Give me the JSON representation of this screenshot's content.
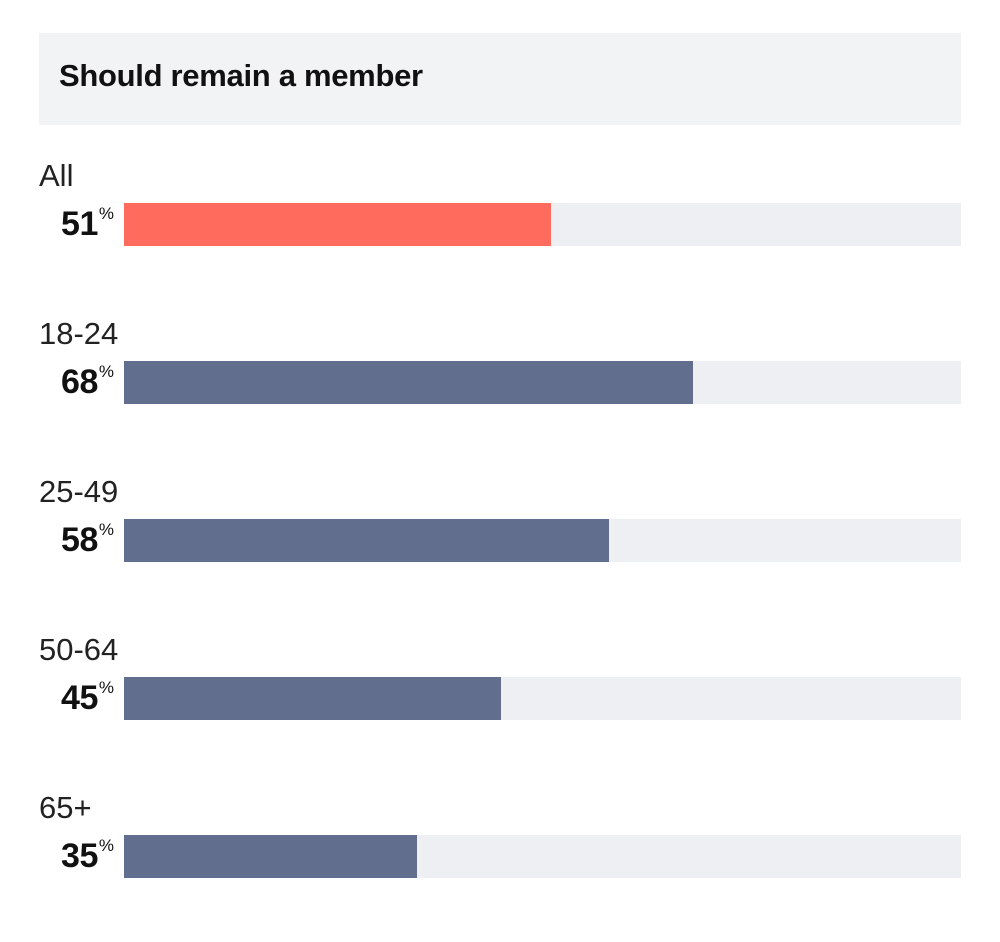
{
  "colors": {
    "highlight": "#ff6b5c",
    "series": "#626e8e",
    "track": "#eeeff2",
    "header_bg": "#f2f3f5"
  },
  "chart_data": {
    "type": "bar",
    "orientation": "horizontal",
    "title": "Should remain a member",
    "unit": "%",
    "xlim": [
      0,
      100
    ],
    "categories": [
      "All",
      "18-24",
      "25-49",
      "50-64",
      "65+"
    ],
    "values": [
      51,
      68,
      58,
      45,
      35
    ],
    "bars": [
      {
        "category": "All",
        "value": 51,
        "display": "51",
        "highlight": true
      },
      {
        "category": "18-24",
        "value": 68,
        "display": "68",
        "highlight": false
      },
      {
        "category": "25-49",
        "value": 58,
        "display": "58",
        "highlight": false
      },
      {
        "category": "50-64",
        "value": 45,
        "display": "45",
        "highlight": false
      },
      {
        "category": "65+",
        "value": 35,
        "display": "35",
        "highlight": false
      }
    ]
  }
}
